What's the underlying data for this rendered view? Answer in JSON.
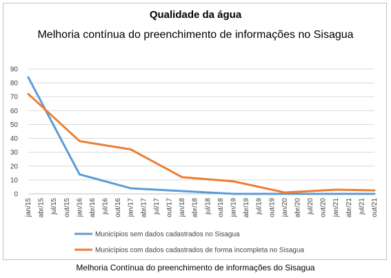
{
  "chart_data": {
    "type": "line",
    "title": "Qualidade da água",
    "subtitle": "Melhoria contínua do preenchimento de informações no Sisagua",
    "caption": "Melhoria Contínua do preenchimento de informações do Sisagua",
    "categories": [
      "jan/15",
      "abr/15",
      "jul/15",
      "out/15",
      "jan/16",
      "abr/16",
      "jul/16",
      "out/16",
      "jan/17",
      "abr/17",
      "jul/17",
      "out/17",
      "jan/18",
      "abr/18",
      "jul/18",
      "out/18",
      "jan/19",
      "abr/19",
      "jul/19",
      "out/19",
      "jan/20",
      "abr/20",
      "jul/20",
      "out/20",
      "jan/21",
      "abr/21",
      "jul/21",
      "out/21"
    ],
    "ylim": [
      0,
      90
    ],
    "yticks": [
      0,
      10,
      20,
      30,
      40,
      50,
      60,
      70,
      80,
      90
    ],
    "grid": true,
    "legend_position": "bottom",
    "series": [
      {
        "name": "Municípios sem dados cadastrados no Sisagua",
        "color": "#5b9bd5",
        "points": [
          [
            0,
            84
          ],
          [
            4,
            14
          ],
          [
            8,
            4
          ],
          [
            12,
            2
          ],
          [
            16,
            0
          ],
          [
            20,
            0
          ],
          [
            24,
            0
          ],
          [
            27,
            0
          ]
        ]
      },
      {
        "name": "Municípios com dados cadastrados de forma incompleta no Sisagua",
        "color": "#ed7d31",
        "points": [
          [
            0,
            72
          ],
          [
            4,
            38
          ],
          [
            8,
            32
          ],
          [
            12,
            12
          ],
          [
            16,
            9
          ],
          [
            20,
            1
          ],
          [
            24,
            3
          ],
          [
            27,
            2.5
          ]
        ]
      }
    ]
  }
}
